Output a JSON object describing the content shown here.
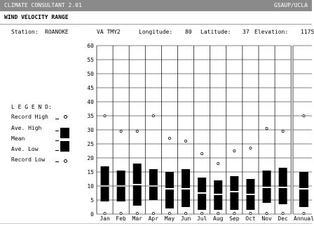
{
  "window": {
    "title": "CLIMATE CONSULTANT 2.01",
    "org": "GSAUP/UCLA"
  },
  "panel": {
    "title": "WIND VELOCITY RANGE"
  },
  "station": {
    "station_label": "Station:",
    "station_name": "ROANOKE",
    "source": "VA TMY2",
    "longitude_label": "Longitude:",
    "longitude": "80",
    "latitude_label": "Latitude:",
    "latitude": "37",
    "elevation_label": "Elevation:",
    "elevation": "1175"
  },
  "legend": {
    "heading": "L E G E N D:",
    "record_high": "Record High",
    "ave_high": "Ave. High",
    "mean": "Mean",
    "ave_low": "Ave. Low",
    "record_low": "Record Low"
  },
  "chart_data": {
    "type": "range",
    "title": "WIND VELOCITY RANGE",
    "ylim": [
      0,
      60
    ],
    "yticks": [
      "0",
      "5",
      "10",
      "15",
      "20",
      "25",
      "30",
      "35",
      "40",
      "45",
      "50",
      "55",
      "60"
    ],
    "grid": true,
    "categories": [
      "Jan",
      "Feb",
      "Mar",
      "Apr",
      "May",
      "Jun",
      "Jul",
      "Aug",
      "Sep",
      "Oct",
      "Nov",
      "Dec",
      "Annual"
    ],
    "record_high": [
      35,
      29.5,
      29.5,
      35,
      27,
      26,
      21.5,
      18,
      22.5,
      23.5,
      30.5,
      29.5,
      35
    ],
    "ave_high": [
      17,
      15.5,
      18,
      16,
      15,
      16,
      13,
      12,
      13.5,
      12.5,
      15.5,
      16.5,
      15
    ],
    "mean": [
      10,
      10,
      10.5,
      10,
      9,
      9,
      7.5,
      7,
      8,
      7,
      9.5,
      9.5,
      9
    ],
    "ave_low": [
      4.5,
      4.5,
      3,
      5,
      2,
      2.5,
      1.5,
      1.5,
      1.5,
      1.5,
      4,
      3.5,
      2.5
    ],
    "record_low": [
      0.5,
      0.5,
      0.5,
      0.5,
      0.5,
      0.5,
      0.5,
      0.5,
      0.5,
      0.5,
      0.5,
      0.5,
      0.5
    ]
  }
}
